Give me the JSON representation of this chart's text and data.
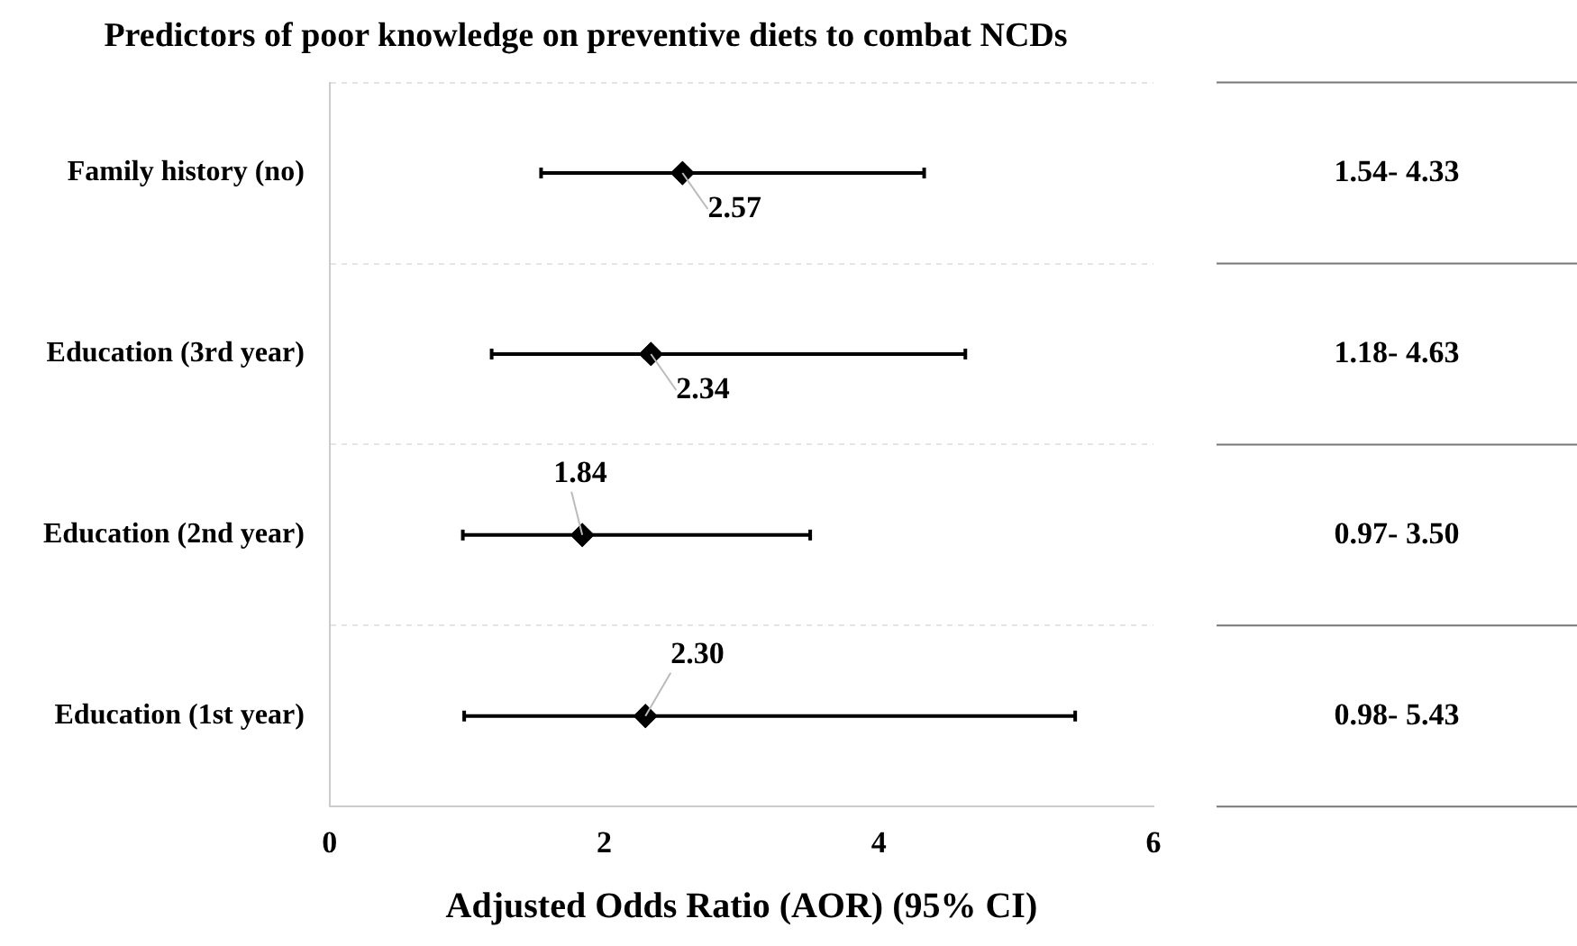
{
  "chart_data": {
    "type": "scatter",
    "orientation": "horizontal",
    "title": "Predictors of poor knowledge on preventive diets to combat NCDs",
    "xlabel": "Adjusted Odds Ratio (AOR) (95% CI)",
    "categories": [
      "Family history (no)",
      "Education (3rd year)",
      "Education (2nd year)",
      "Education (1st year)"
    ],
    "values": [
      2.57,
      2.34,
      1.84,
      2.3
    ],
    "value_labels": [
      "2.57",
      "2.34",
      "1.84",
      "2.30"
    ],
    "errors": [
      [
        1.54,
        4.33
      ],
      [
        1.18,
        4.63
      ],
      [
        0.97,
        3.5
      ],
      [
        0.98,
        5.43
      ]
    ],
    "color": "#000000",
    "marker": "diamond",
    "xlim": [
      0,
      6
    ],
    "xticks": [
      0,
      2,
      4,
      6
    ],
    "grid": "y",
    "legend": false,
    "annotations": [
      "1.54- 4.33",
      "1.18- 4.63",
      "0.97- 3.50",
      "0.98- 5.43"
    ]
  }
}
